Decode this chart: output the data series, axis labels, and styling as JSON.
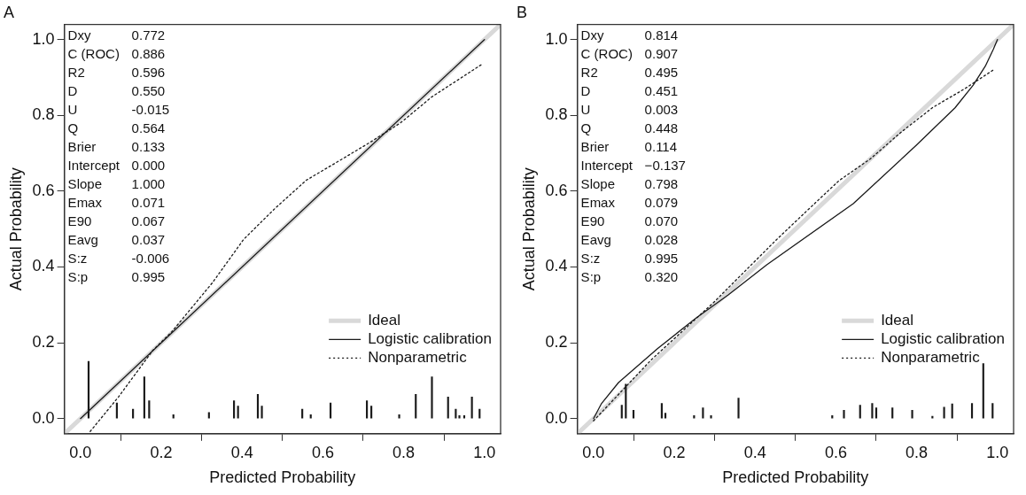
{
  "chart_data": [
    {
      "type": "line",
      "title": "A",
      "xlabel": "Predicted Probability",
      "ylabel": "Actual Probability",
      "xlim": [
        -0.04,
        1.04
      ],
      "ylim": [
        -0.04,
        1.04
      ],
      "xticks": [
        {
          "value": 0,
          "label": "0.0"
        },
        {
          "value": 0.2,
          "label": "0.2"
        },
        {
          "value": 0.4,
          "label": "0.4"
        },
        {
          "value": 0.6,
          "label": "0.6"
        },
        {
          "value": 0.8,
          "label": "0.8"
        },
        {
          "value": 1,
          "label": "1.0"
        }
      ],
      "yticks": [
        {
          "value": 0,
          "label": "0.0"
        },
        {
          "value": 0.2,
          "label": "0.2"
        },
        {
          "value": 0.4,
          "label": "0.4"
        },
        {
          "value": 0.6,
          "label": "0.6"
        },
        {
          "value": 0.8,
          "label": "0.8"
        },
        {
          "value": 1,
          "label": "1.0"
        }
      ],
      "grid": false,
      "legend": "bottom right",
      "marker": "none",
      "annotations": [
        "Dxy",
        "0.772",
        "C (ROC)",
        "0.886",
        "R2",
        "0.596",
        "D",
        "0.550",
        "U",
        "-0.015",
        "Q",
        "0.564",
        "Brier",
        "0.133",
        "Intercept",
        "0.000",
        "Slope",
        "1.000",
        "Emax",
        "0.071",
        "E90",
        "0.067",
        "Eavg",
        "0.037",
        "S:z",
        "-0.006",
        "S:p",
        "0.995"
      ],
      "series": [
        {
          "name": "Ideal",
          "color": "#d9d9d9",
          "line_style": "solid",
          "x": [
            -0.04,
            1.04
          ],
          "values": [
            -0.04,
            1.04
          ]
        },
        {
          "name": "Logistic calibration",
          "color": "#1a1a1a",
          "line_style": "solid",
          "x": [
            0,
            1
          ],
          "values": [
            0,
            1
          ]
        },
        {
          "name": "Nonparametric",
          "color": "#1a1a1a",
          "line_style": "dotted",
          "x": [
            0.024,
            0.094,
            0.179,
            0.226,
            0.327,
            0.404,
            0.482,
            0.559,
            0.637,
            0.714,
            0.792,
            0.87,
            0.994
          ],
          "values": [
            -0.034,
            0.057,
            0.18,
            0.229,
            0.359,
            0.473,
            0.555,
            0.629,
            0.678,
            0.727,
            0.78,
            0.849,
            0.935
          ]
        },
        {
          "type": "bar",
          "color": "#1a1a1a",
          "x": [
            0.02,
            0.09,
            0.13,
            0.158,
            0.17,
            0.23,
            0.318,
            0.38,
            0.39,
            0.439,
            0.449,
            0.549,
            0.57,
            0.619,
            0.709,
            0.72,
            0.789,
            0.83,
            0.87,
            0.91,
            0.929,
            0.938,
            0.95,
            0.969,
            0.988
          ],
          "values": [
            0.151,
            0.041,
            0.025,
            0.11,
            0.047,
            0.01,
            0.016,
            0.047,
            0.033,
            0.064,
            0.033,
            0.025,
            0.01,
            0.041,
            0.047,
            0.033,
            0.01,
            0.064,
            0.11,
            0.057,
            0.025,
            0.008,
            0.008,
            0.057,
            0.025
          ]
        }
      ]
    },
    {
      "type": "line",
      "title": "B",
      "xlabel": "Predicted Probability",
      "ylabel": "Actual Probability",
      "xlim": [
        -0.04,
        1.04
      ],
      "ylim": [
        -0.04,
        1.04
      ],
      "xticks": [
        {
          "value": 0,
          "label": "0.0"
        },
        {
          "value": 0.2,
          "label": "0.2"
        },
        {
          "value": 0.4,
          "label": "0.4"
        },
        {
          "value": 0.6,
          "label": "0.6"
        },
        {
          "value": 0.8,
          "label": "0.8"
        },
        {
          "value": 1,
          "label": "1.0"
        }
      ],
      "yticks": [
        {
          "value": 0,
          "label": "0.0"
        },
        {
          "value": 0.2,
          "label": "0.2"
        },
        {
          "value": 0.4,
          "label": "0.4"
        },
        {
          "value": 0.6,
          "label": "0.6"
        },
        {
          "value": 0.8,
          "label": "0.8"
        },
        {
          "value": 1,
          "label": "1.0"
        }
      ],
      "grid": false,
      "legend": "bottom right",
      "marker": "none",
      "annotations": [
        "Dxy",
        "0.814",
        "C (ROC)",
        "0.907",
        "R2",
        "0.495",
        "D",
        "0.451",
        "U",
        "0.003",
        "Q",
        "0.448",
        "Brier",
        "0.114",
        "Intercept",
        "−0.137",
        "Slope",
        "0.798",
        "Emax",
        "0.079",
        "E90",
        "0.070",
        "Eavg",
        "0.028",
        "S:z",
        "0.995",
        "S:p",
        "0.320"
      ],
      "series": [
        {
          "name": "Ideal",
          "color": "#d9d9d9",
          "line_style": "solid",
          "x": [
            -0.04,
            1.04
          ],
          "values": [
            -0.04,
            1.04
          ]
        },
        {
          "name": "Logistic calibration",
          "color": "#1a1a1a",
          "line_style": "solid",
          "x": [
            0,
            0.02,
            0.062,
            0.159,
            0.255,
            0.333,
            0.429,
            0.643,
            0.798,
            0.895,
            0.94,
            0.97,
            0.99,
            1
          ],
          "values": [
            0,
            0.04,
            0.095,
            0.185,
            0.266,
            0.326,
            0.406,
            0.567,
            0.72,
            0.82,
            0.88,
            0.93,
            0.975,
            1
          ]
        },
        {
          "name": "Nonparametric",
          "color": "#1a1a1a",
          "line_style": "dotted",
          "x": [
            0,
            0.143,
            0.298,
            0.453,
            0.53,
            0.608,
            0.685,
            0.763,
            0.84,
            0.917,
            0.99
          ],
          "values": [
            -0.006,
            0.155,
            0.307,
            0.472,
            0.55,
            0.628,
            0.685,
            0.757,
            0.821,
            0.869,
            0.92
          ]
        },
        {
          "type": "bar",
          "color": "#1a1a1a",
          "x": [
            0.07,
            0.08,
            0.099,
            0.169,
            0.178,
            0.249,
            0.271,
            0.291,
            0.359,
            0.591,
            0.62,
            0.66,
            0.69,
            0.7,
            0.74,
            0.789,
            0.839,
            0.868,
            0.888,
            0.937,
            0.965,
            0.988
          ],
          "values": [
            0.035,
            0.091,
            0.022,
            0.04,
            0.014,
            0.008,
            0.028,
            0.008,
            0.054,
            0.008,
            0.022,
            0.035,
            0.04,
            0.028,
            0.028,
            0.022,
            0.006,
            0.03,
            0.039,
            0.04,
            0.145,
            0.04
          ]
        }
      ]
    }
  ]
}
